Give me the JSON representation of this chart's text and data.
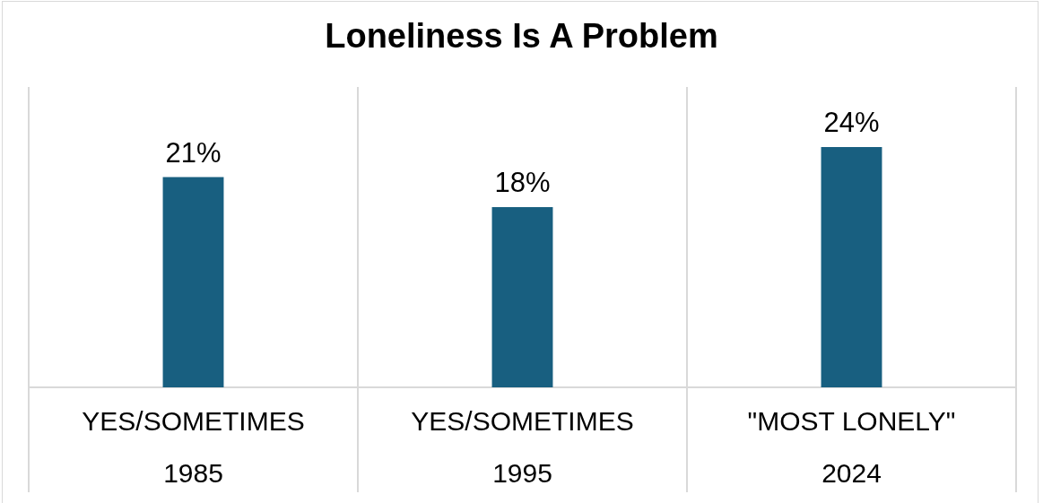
{
  "chart_data": {
    "type": "bar",
    "title": "Loneliness Is A Problem",
    "categories": [
      "YES/SOMETIMES\n1985",
      "YES/SOMETIMES\n1995",
      "\"MOST LONELY\"\n2024"
    ],
    "values": [
      21,
      18,
      24
    ],
    "color": "#185f80",
    "value_labels": [
      "21%",
      "18%",
      "24%"
    ],
    "grid": "x"
  }
}
